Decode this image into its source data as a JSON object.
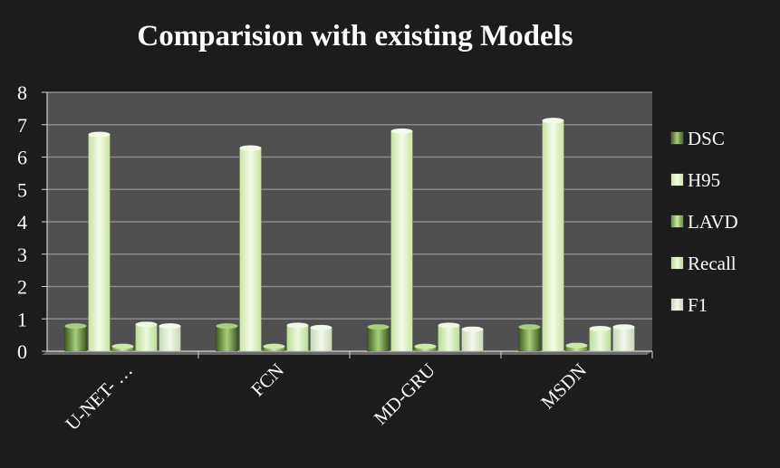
{
  "chart_data": {
    "type": "bar",
    "title": "Comparision with existing Models",
    "categories": [
      "U-NET- …",
      "FCN",
      "MD-GRU",
      "MSDN"
    ],
    "series": [
      {
        "name": "DSC",
        "values": [
          0.78,
          0.78,
          0.75,
          0.75
        ]
      },
      {
        "name": "H95",
        "values": [
          6.7,
          6.28,
          6.8,
          7.13
        ]
      },
      {
        "name": "LAVD",
        "values": [
          0.15,
          0.15,
          0.15,
          0.18
        ]
      },
      {
        "name": "Recall",
        "values": [
          0.83,
          0.8,
          0.8,
          0.7
        ]
      },
      {
        "name": "F1",
        "values": [
          0.78,
          0.73,
          0.68,
          0.75
        ]
      }
    ],
    "y_ticks": [
      0,
      1,
      2,
      3,
      4,
      5,
      6,
      7,
      8
    ],
    "ylim": [
      0,
      8
    ],
    "xlabel": "",
    "ylabel": "",
    "legend_position": "right",
    "grid": true
  },
  "colors": {
    "background": "#1c1c1c",
    "plot_area": "#505050",
    "gridline": "#8a8a8a",
    "text": "#ffffff",
    "DSC": [
      "#3f5a22",
      "#a7cf7a",
      "#3f5a22"
    ],
    "H95": [
      "#c9e3a3",
      "#f4fbe6",
      "#c9e3a3"
    ],
    "LAVD": [
      "#5f8f2f",
      "#cde8a8",
      "#5f8f2f"
    ],
    "Recall": [
      "#b9dc95",
      "#eef8df",
      "#b9dc95"
    ],
    "F1": [
      "#c7d8b6",
      "#f2f7ec",
      "#c7d8b6"
    ]
  }
}
